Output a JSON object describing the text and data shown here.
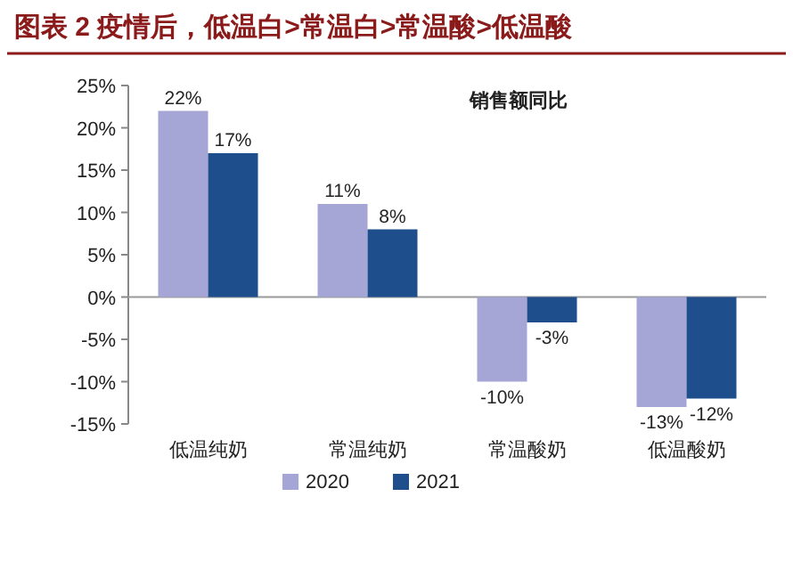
{
  "chart_data": {
    "type": "bar",
    "title": "图表 2   疫情后，低温白>常温白>常温酸>低温酸",
    "subtitle": "销售额同比",
    "categories": [
      "低温纯奶",
      "常温纯奶",
      "常温酸奶",
      "低温酸奶"
    ],
    "series": [
      {
        "name": "2020",
        "color": "#a5a5d6",
        "values": [
          22,
          11,
          -10,
          -13
        ],
        "value_labels": [
          "22%",
          "11%",
          "-10%",
          "-13%"
        ]
      },
      {
        "name": "2021",
        "color": "#1f4e8c",
        "values": [
          17,
          8,
          -3,
          -12
        ],
        "value_labels": [
          "17%",
          "8%",
          "-3%",
          "-12%"
        ]
      }
    ],
    "ylim": [
      -15,
      25
    ],
    "yticks": [
      {
        "value": -15,
        "label": "-15%"
      },
      {
        "value": -10,
        "label": "-10%"
      },
      {
        "value": -5,
        "label": "-5%"
      },
      {
        "value": 0,
        "label": "0%"
      },
      {
        "value": 5,
        "label": "5%"
      },
      {
        "value": 10,
        "label": "10%"
      },
      {
        "value": 15,
        "label": "15%"
      },
      {
        "value": 20,
        "label": "20%"
      },
      {
        "value": 25,
        "label": "25%"
      }
    ],
    "legend": "bottom"
  }
}
